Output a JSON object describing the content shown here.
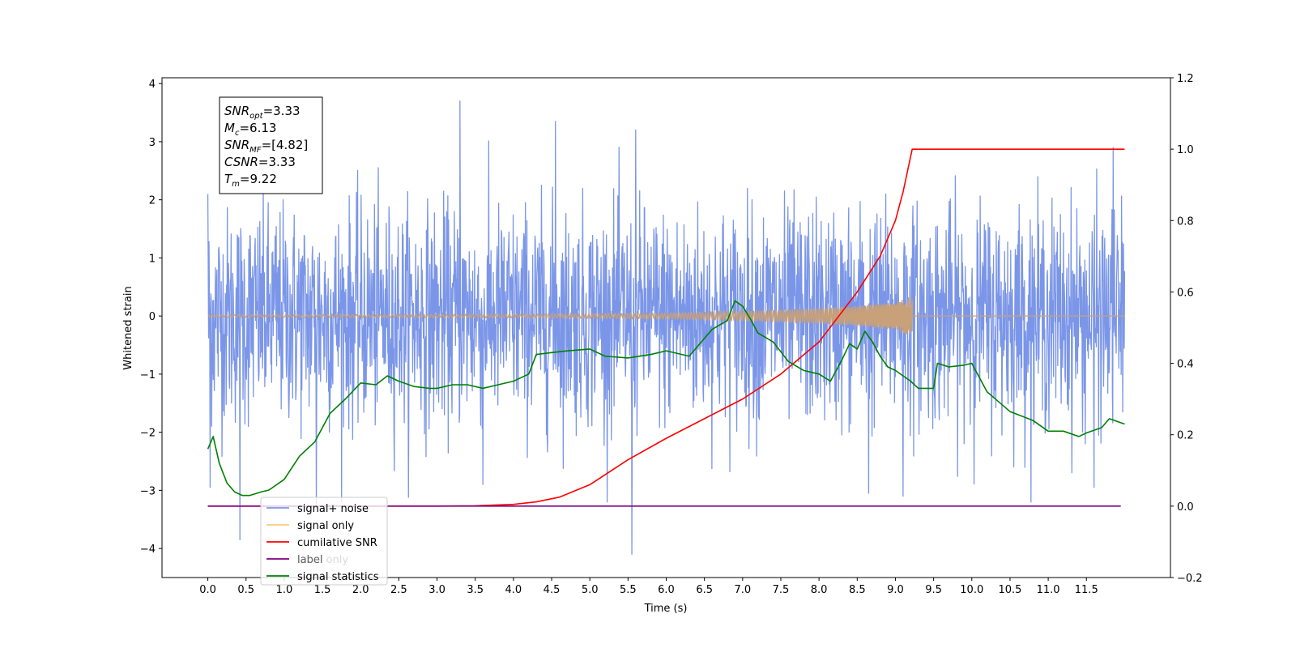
{
  "chart_data": {
    "type": "line",
    "xlabel": "Time (s)",
    "ylabel": "Whitened strain",
    "xlim": [
      -0.6,
      12.6
    ],
    "ylim": [
      -4.5,
      4.1
    ],
    "y2lim": [
      -0.2,
      1.2
    ],
    "x_ticks": [
      "0.0",
      "0.5",
      "1.0",
      "1.5",
      "2.0",
      "2.5",
      "3.0",
      "3.5",
      "4.0",
      "4.5",
      "5.0",
      "5.5",
      "6.0",
      "6.5",
      "7.0",
      "7.5",
      "8.0",
      "8.5",
      "9.0",
      "9.5",
      "10.0",
      "10.5",
      "11.0",
      "11.5"
    ],
    "y_ticks": [
      "−4",
      "−3",
      "−2",
      "−1",
      "0",
      "1",
      "2",
      "3",
      "4"
    ],
    "y2_ticks": [
      "−0.2",
      "0.0",
      "0.2",
      "0.4",
      "0.6",
      "0.8",
      "1.0",
      "1.2"
    ],
    "stats_box": [
      {
        "sym": "SNR",
        "sub": "opt",
        "text": "=3.33"
      },
      {
        "sym": "M",
        "sub": "c",
        "text": "=6.13"
      },
      {
        "sym": "SNR",
        "sub": "MF",
        "text": "=[4.82]"
      },
      {
        "sym": "CSNR",
        "sub": "",
        "text": "=3.33"
      },
      {
        "sym": "T",
        "sub": "m",
        "text": "=9.22"
      }
    ],
    "legend": {
      "position": "lower-left",
      "entries": [
        {
          "label": "signal+ noise",
          "color": "#7b96e8"
        },
        {
          "label": "signal only",
          "color": "#ffc980"
        },
        {
          "label": "cumilative SNR",
          "color": "#ff0000"
        },
        {
          "label": "label",
          "color": "#800080"
        },
        {
          "label": "signal statistics",
          "color": "#008000"
        }
      ],
      "ghost_text": "label only"
    },
    "series": [
      {
        "name": "signal+ noise",
        "axis": "left",
        "color": "#7b96e8",
        "description": "white noise, std about 0.95",
        "x_range": [
          0.0,
          12.0
        ],
        "peaks": [
          {
            "x": 0.0,
            "y": 2.1
          },
          {
            "x": 0.03,
            "y": -2.95
          },
          {
            "x": 0.42,
            "y": -3.85
          },
          {
            "x": 1.42,
            "y": -3.3
          },
          {
            "x": 3.3,
            "y": 3.7
          },
          {
            "x": 3.6,
            "y": -2.9
          },
          {
            "x": 4.55,
            "y": 3.35
          },
          {
            "x": 5.55,
            "y": -4.1
          },
          {
            "x": 5.6,
            "y": 3.2
          },
          {
            "x": 8.65,
            "y": -3.05
          },
          {
            "x": 9.1,
            "y": -3.1
          },
          {
            "x": 11.6,
            "y": -2.95
          },
          {
            "x": 11.85,
            "y": 2.9
          }
        ]
      },
      {
        "name": "signal only",
        "axis": "left",
        "color": "#c8a07a",
        "description": "chirp growing in amplitude, ending at merger time",
        "x_range": [
          0.0,
          12.0
        ],
        "merger_time": 9.22,
        "envelope": [
          [
            0,
            0.02
          ],
          [
            4,
            0.03
          ],
          [
            6,
            0.05
          ],
          [
            7,
            0.08
          ],
          [
            8,
            0.13
          ],
          [
            8.5,
            0.17
          ],
          [
            9.0,
            0.24
          ],
          [
            9.22,
            0.35
          ]
        ]
      },
      {
        "name": "cumilative SNR",
        "axis": "right",
        "color": "#ff0000",
        "x": [
          0,
          3.0,
          3.5,
          4.0,
          4.3,
          4.6,
          5.0,
          5.5,
          6.0,
          6.5,
          7.0,
          7.5,
          8.0,
          8.5,
          8.8,
          9.0,
          9.1,
          9.15,
          9.2,
          9.22,
          12.0
        ],
        "y": [
          0,
          0,
          0.001,
          0.005,
          0.012,
          0.025,
          0.06,
          0.13,
          0.19,
          0.245,
          0.3,
          0.37,
          0.46,
          0.6,
          0.7,
          0.8,
          0.88,
          0.93,
          0.98,
          1.0,
          1.0
        ]
      },
      {
        "name": "label",
        "axis": "right",
        "color": "#800080",
        "x": [
          0,
          11.95
        ],
        "y": [
          0.0,
          0.0
        ]
      },
      {
        "name": "signal statistics",
        "axis": "right",
        "color": "#008000",
        "x": [
          0.0,
          0.07,
          0.15,
          0.25,
          0.35,
          0.45,
          0.55,
          0.7,
          0.8,
          1.0,
          1.2,
          1.4,
          1.6,
          1.8,
          2.0,
          2.2,
          2.35,
          2.5,
          2.7,
          2.9,
          3.0,
          3.2,
          3.4,
          3.6,
          3.8,
          4.0,
          4.2,
          4.3,
          4.5,
          4.7,
          5.0,
          5.2,
          5.5,
          5.8,
          6.0,
          6.3,
          6.5,
          6.6,
          6.8,
          6.9,
          7.0,
          7.1,
          7.2,
          7.4,
          7.6,
          7.8,
          8.0,
          8.15,
          8.3,
          8.4,
          8.5,
          8.6,
          8.7,
          8.8,
          8.9,
          9.0,
          9.2,
          9.3,
          9.5,
          9.55,
          9.7,
          9.9,
          10.0,
          10.2,
          10.5,
          10.8,
          11.0,
          11.2,
          11.4,
          11.5,
          11.7,
          11.8,
          12.0
        ],
        "y": [
          0.16,
          0.195,
          0.12,
          0.065,
          0.04,
          0.03,
          0.03,
          0.04,
          0.045,
          0.075,
          0.14,
          0.18,
          0.26,
          0.3,
          0.345,
          0.34,
          0.365,
          0.35,
          0.335,
          0.33,
          0.33,
          0.34,
          0.34,
          0.33,
          0.34,
          0.35,
          0.37,
          0.425,
          0.43,
          0.435,
          0.44,
          0.42,
          0.415,
          0.425,
          0.435,
          0.42,
          0.47,
          0.495,
          0.52,
          0.575,
          0.56,
          0.525,
          0.485,
          0.46,
          0.405,
          0.38,
          0.37,
          0.35,
          0.41,
          0.455,
          0.44,
          0.49,
          0.46,
          0.42,
          0.39,
          0.38,
          0.35,
          0.33,
          0.33,
          0.4,
          0.39,
          0.395,
          0.4,
          0.32,
          0.265,
          0.24,
          0.21,
          0.21,
          0.195,
          0.205,
          0.22,
          0.245,
          0.23
        ]
      }
    ]
  }
}
